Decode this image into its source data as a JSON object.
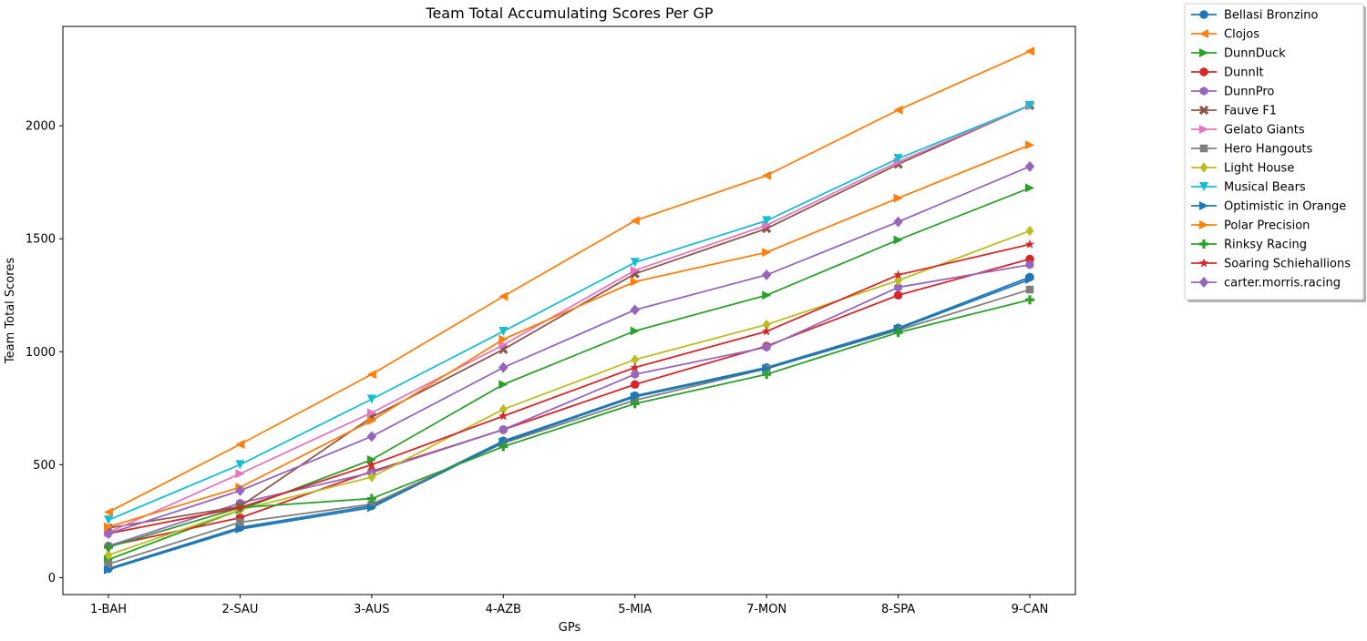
{
  "chart_data": {
    "type": "line",
    "title": "Team Total Accumulating Scores Per GP",
    "xlabel": "GPs",
    "ylabel": "Team Total Scores",
    "categories": [
      "1-BAH",
      "2-SAU",
      "3-AUS",
      "4-AZB",
      "5-MIA",
      "7-MON",
      "8-SPA",
      "9-CAN"
    ],
    "ylim": [
      -75,
      2440
    ],
    "yticks": [
      0,
      500,
      1000,
      1500,
      2000
    ],
    "grid": false,
    "legend_position": "outside-top-right",
    "series": [
      {
        "name": "Bellasi Bronzino",
        "color": "#1f77b4",
        "marker": "circle",
        "values": [
          40,
          222,
          318,
          605,
          805,
          930,
          1105,
          1330
        ]
      },
      {
        "name": "Clojos",
        "color": "#ff7f0e",
        "marker": "triangle-left",
        "values": [
          290,
          590,
          900,
          1245,
          1580,
          1780,
          2070,
          2330
        ]
      },
      {
        "name": "DunnDuck",
        "color": "#2ca02c",
        "marker": "triangle-right",
        "values": [
          80,
          300,
          522,
          855,
          1092,
          1250,
          1495,
          1725
        ]
      },
      {
        "name": "DunnIt",
        "color": "#d62728",
        "marker": "circle",
        "values": [
          140,
          265,
          470,
          655,
          855,
          1025,
          1250,
          1410
        ]
      },
      {
        "name": "DunnPro",
        "color": "#9467bd",
        "marker": "hexagon",
        "values": [
          140,
          330,
          465,
          655,
          900,
          1020,
          1285,
          1385
        ]
      },
      {
        "name": "Fauve F1",
        "color": "#8c564b",
        "marker": "x",
        "values": [
          220,
          315,
          710,
          1010,
          1345,
          1545,
          1830,
          2090
        ]
      },
      {
        "name": "Gelato Giants",
        "color": "#e377c2",
        "marker": "triangle-right",
        "values": [
          200,
          460,
          730,
          1030,
          1360,
          1560,
          1840,
          2090
        ]
      },
      {
        "name": "Hero Hangouts",
        "color": "#7f7f7f",
        "marker": "square",
        "values": [
          60,
          245,
          325,
          595,
          785,
          925,
          1095,
          1275
        ]
      },
      {
        "name": "Light House",
        "color": "#bcbd22",
        "marker": "diamond",
        "values": [
          100,
          300,
          445,
          745,
          965,
          1120,
          1315,
          1535
        ]
      },
      {
        "name": "Musical Bears",
        "color": "#17becf",
        "marker": "triangle-down",
        "values": [
          255,
          500,
          790,
          1090,
          1395,
          1580,
          1855,
          2090
        ]
      },
      {
        "name": "Optimistic in Orange",
        "color": "#1f77b4",
        "marker": "triangle-right",
        "values": [
          35,
          215,
          310,
          600,
          800,
          925,
          1100,
          1320
        ]
      },
      {
        "name": "Polar Precision",
        "color": "#ff7f0e",
        "marker": "triangle-right",
        "values": [
          225,
          400,
          695,
          1055,
          1310,
          1440,
          1680,
          1915
        ]
      },
      {
        "name": "Rinksy Racing",
        "color": "#2ca02c",
        "marker": "plus",
        "values": [
          135,
          310,
          350,
          580,
          770,
          900,
          1085,
          1230
        ]
      },
      {
        "name": "Soaring Schiehallions",
        "color": "#d62728",
        "marker": "star",
        "values": [
          195,
          310,
          500,
          715,
          930,
          1090,
          1340,
          1475
        ]
      },
      {
        "name": "carter.morris.racing",
        "color": "#9467bd",
        "marker": "thin-diamond",
        "values": [
          195,
          385,
          625,
          930,
          1185,
          1340,
          1575,
          1820
        ]
      }
    ]
  }
}
